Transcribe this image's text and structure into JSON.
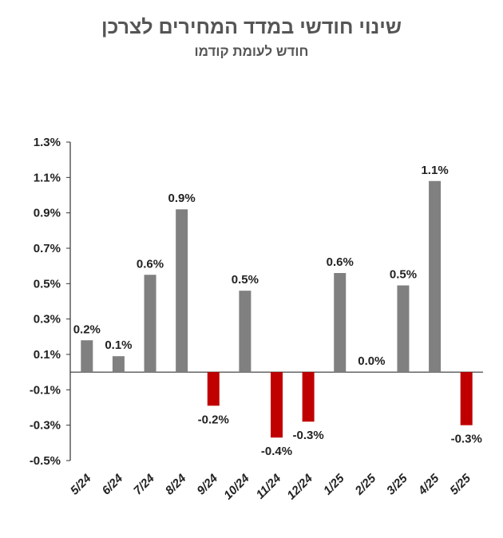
{
  "chart_data": {
    "type": "bar",
    "title": "שינוי חודשי במדד המחירים לצרכן",
    "subtitle": "חודש לעומת קודמו",
    "xlabel": "",
    "ylabel": "",
    "categories": [
      "5/24",
      "6/24",
      "7/24",
      "8/24",
      "9/24",
      "10/24",
      "11/24",
      "12/24",
      "1/25",
      "2/25",
      "3/25",
      "4/25",
      "5/25"
    ],
    "values": [
      0.18,
      0.09,
      0.55,
      0.92,
      -0.19,
      0.46,
      -0.37,
      -0.28,
      0.56,
      0.0,
      0.49,
      1.08,
      -0.3
    ],
    "data_labels": [
      "0.2%",
      "0.1%",
      "0.6%",
      "0.9%",
      "-0.2%",
      "0.5%",
      "-0.4%",
      "-0.3%",
      "0.6%",
      "0.0%",
      "0.5%",
      "1.1%",
      "-0.3%"
    ],
    "ylim": [
      -0.5,
      1.3
    ],
    "yticks": [
      1.3,
      1.1,
      0.9,
      0.7,
      0.5,
      0.3,
      0.1,
      -0.1,
      -0.3,
      -0.5
    ],
    "ytick_labels": [
      "1.3%",
      "1.1%",
      "0.9%",
      "0.7%",
      "0.5%",
      "0.3%",
      "0.1%",
      "-0.1%",
      "-0.3%",
      "-0.5%"
    ],
    "grid": false,
    "legend": "none",
    "colors": {
      "positive": "#808080",
      "negative": "#c00000"
    }
  }
}
